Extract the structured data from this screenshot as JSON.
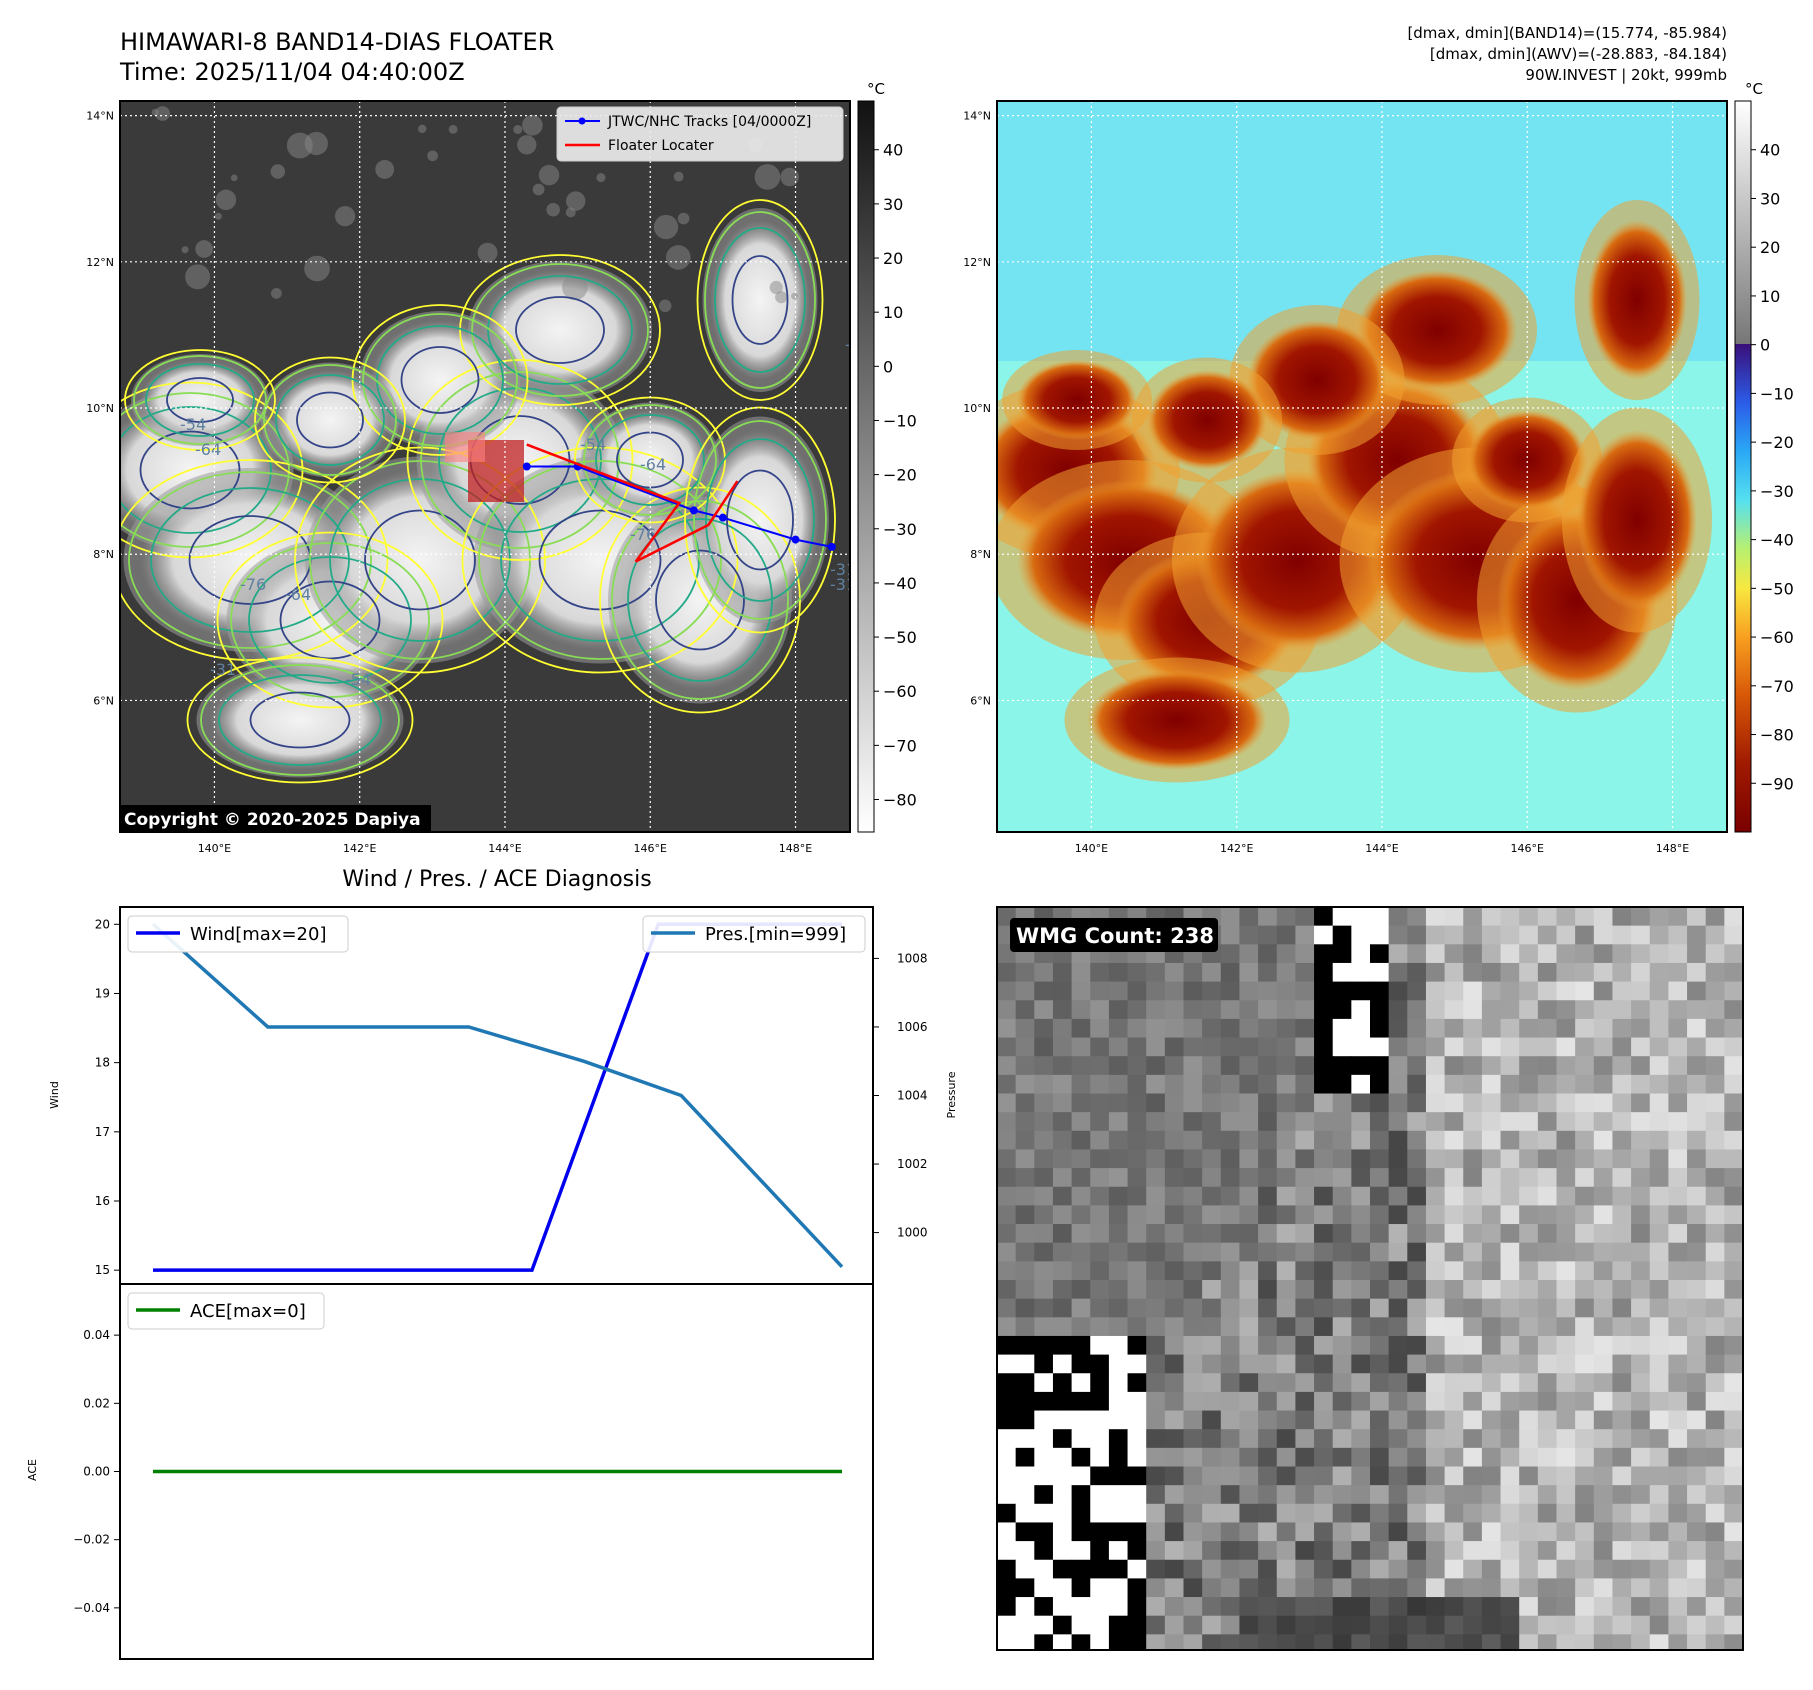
{
  "header": {
    "title_line1": "HIMAWARI-8 BAND14-DIAS FLOATER",
    "title_line2": "Time: 2025/11/04 04:40:00Z",
    "info_line1": "[dmax, dmin](BAND14)=(15.774, -85.984)",
    "info_line2": "[dmax, dmin](AWV)=(-28.883, -84.184)",
    "info_line3": "90W.INVEST | 20kt, 999mb"
  },
  "map": {
    "lat_ticks": [
      "14°N",
      "12°N",
      "10°N",
      "8°N",
      "6°N"
    ],
    "lat_values": [
      14,
      12,
      10,
      8,
      6
    ],
    "lon_ticks": [
      "140°E",
      "142°E",
      "144°E",
      "146°E",
      "148°E"
    ],
    "lon_values": [
      140,
      142,
      144,
      146,
      148
    ],
    "lon_range": [
      138.7,
      148.75
    ],
    "lat_range": [
      4.2,
      14.2
    ],
    "legend_track": "JTWC/NHC Tracks [04/0000Z]",
    "legend_locater": "Floater Locater",
    "copyright": "Copyright © 2020-2025 Dapiya",
    "contour_labels": [
      "-76",
      "-64",
      "-54",
      "-31",
      "-64",
      "-54",
      "-31",
      "-31",
      "-76",
      "-54",
      "-64",
      "-31"
    ],
    "track": [
      {
        "lon": 144.3,
        "lat": 9.2
      },
      {
        "lon": 145.0,
        "lat": 9.2
      },
      {
        "lon": 146.6,
        "lat": 8.6
      },
      {
        "lon": 147.0,
        "lat": 8.5
      },
      {
        "lon": 148.0,
        "lat": 8.2
      },
      {
        "lon": 148.5,
        "lat": 8.1
      }
    ],
    "locater": [
      {
        "lon": 144.3,
        "lat": 9.5
      },
      {
        "lon": 146.4,
        "lat": 8.7
      },
      {
        "lon": 145.8,
        "lat": 7.9
      },
      {
        "lon": 146.8,
        "lat": 8.4
      },
      {
        "lon": 147.2,
        "lat": 9.0
      }
    ],
    "colors": {
      "track": "#0000ff",
      "locater": "#ff0000",
      "contour1": "#ffff33",
      "contour2": "#88dd55",
      "contour3": "#22aa88",
      "contour4": "#334488"
    }
  },
  "colorbar_left": {
    "unit": "°C",
    "ticks": [
      "40",
      "30",
      "20",
      "10",
      "0",
      "−10",
      "−20",
      "−30",
      "−40",
      "−50",
      "−60",
      "−70",
      "−80"
    ],
    "tick_values": [
      40,
      30,
      20,
      10,
      0,
      -10,
      -20,
      -30,
      -40,
      -50,
      -60,
      -70,
      -80
    ],
    "range": [
      -86,
      49
    ]
  },
  "colorbar_right": {
    "unit": "°C",
    "ticks": [
      "40",
      "30",
      "20",
      "10",
      "0",
      "−10",
      "−20",
      "−30",
      "−40",
      "−50",
      "−60",
      "−70",
      "−80",
      "−90"
    ],
    "tick_values": [
      40,
      30,
      20,
      10,
      0,
      -10,
      -20,
      -30,
      -40,
      -50,
      -60,
      -70,
      -80,
      -90
    ],
    "range": [
      -100,
      50
    ]
  },
  "diagnosis": {
    "title": "Wind / Pres. / ACE Diagnosis",
    "wind_axis_label": "Wind",
    "pressure_axis_label": "Pressure",
    "ace_axis_label": "ACE",
    "wind_legend": "Wind[max=20]",
    "pres_legend": "Pres.[min=999]",
    "ace_legend": "ACE[max=0]",
    "wind_ticks": [
      "20",
      "19",
      "18",
      "17",
      "16",
      "15"
    ],
    "pres_ticks": [
      "1008",
      "1006",
      "1004",
      "1002",
      "1000"
    ],
    "ace_ticks": [
      "0.04",
      "0.02",
      "0.00",
      "−0.02",
      "−0.04"
    ]
  },
  "chart_data": [
    {
      "type": "line",
      "x": [
        0,
        1,
        2,
        3,
        4,
        5
      ],
      "series": [
        {
          "name": "Wind[max=20]",
          "axis": "Wind",
          "values": [
            15,
            15,
            15,
            20,
            20,
            20
          ],
          "color": "#0000ee"
        },
        {
          "name": "Pres.[min=999]",
          "axis": "Pressure",
          "values": [
            1009,
            1006,
            1006,
            1005,
            1004,
            999
          ],
          "color": "#1f77b4"
        }
      ],
      "x_positions": [
        0,
        0.33,
        0.66,
        0.88,
        1.0,
        1.2
      ],
      "ylim_wind": [
        14.8,
        20.25
      ],
      "ylim_pressure": [
        998.5,
        1009.5
      ],
      "grid": false,
      "legend": [
        "top-left",
        "top-right"
      ]
    },
    {
      "type": "line",
      "series": [
        {
          "name": "ACE[max=0]",
          "values": [
            0,
            0
          ],
          "color": "#008000"
        }
      ],
      "ylim": [
        -0.055,
        0.055
      ],
      "grid": false,
      "legend": "top-left"
    }
  ],
  "wmg": {
    "label": "WMG Count: 238"
  }
}
